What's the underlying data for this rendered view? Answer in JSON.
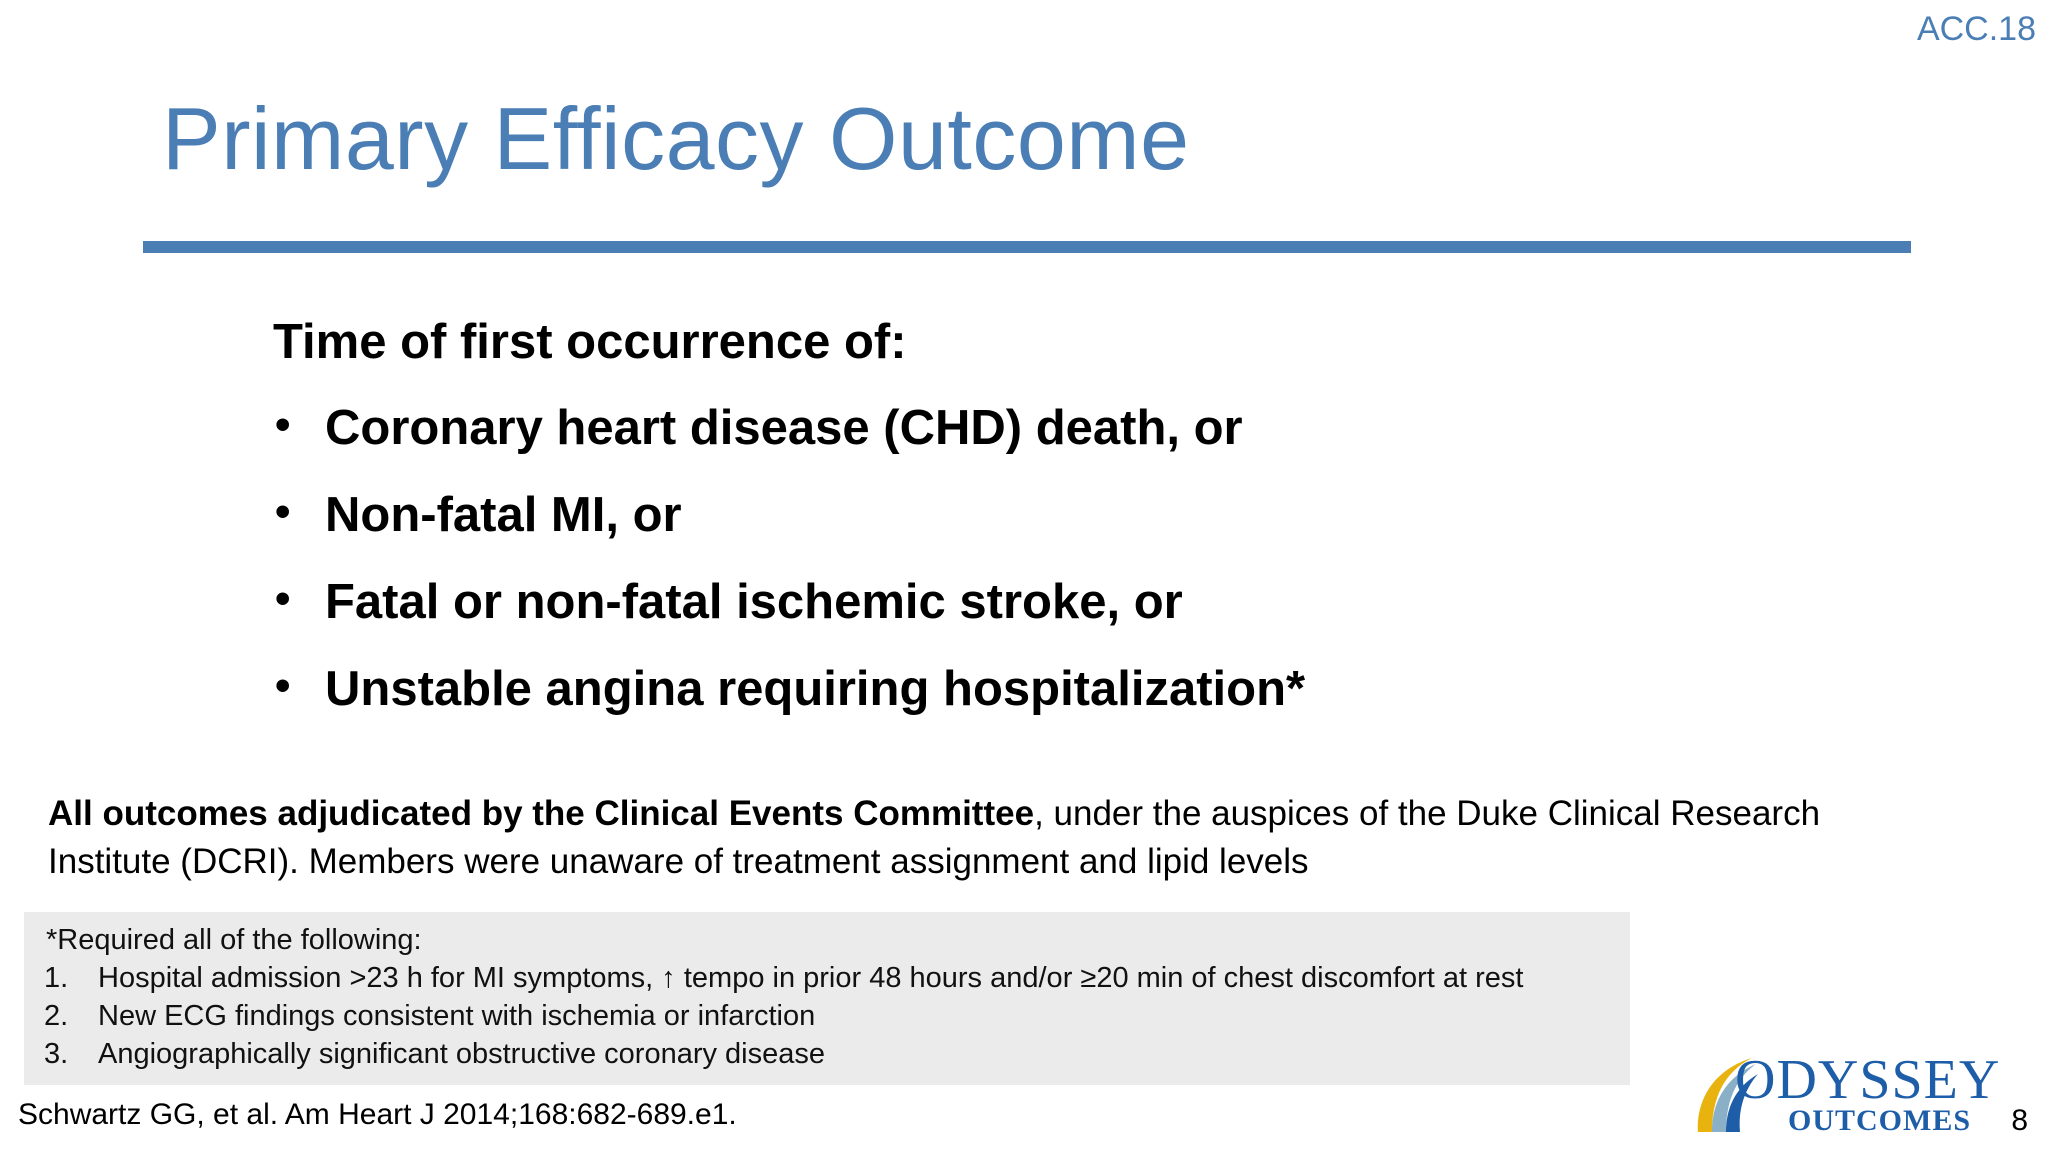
{
  "header": {
    "conference_tag": "ACC.18",
    "title": "Primary Efficacy Outcome"
  },
  "colors": {
    "accent": "#4a7eb5",
    "footnote_bg": "#ebebeb",
    "logo_blue": "#1e5ea8",
    "logo_gold": "#e8b30e"
  },
  "content": {
    "lead": "Time of first occurrence of:",
    "bullets": [
      "Coronary heart disease (CHD) death, or",
      "Non-fatal MI, or",
      "Fatal or non-fatal ischemic stroke, or",
      "Unstable angina requiring hospitalization*"
    ],
    "bullet_symbol": "•",
    "note_bold": "All outcomes adjudicated by the Clinical Events Committee",
    "note_rest": ", under the auspices of the Duke Clinical Research Institute (DCRI). Members were unaware of treatment assignment and lipid levels"
  },
  "footnote": {
    "heading": "*Required all of the following:",
    "items": [
      {
        "num": "1.",
        "text": "Hospital admission >23 h for MI symptoms, ↑ tempo in prior 48 hours and/or ≥20 min of chest discomfort at rest"
      },
      {
        "num": "2.",
        "text": "New ECG findings consistent with ischemia or infarction"
      },
      {
        "num": "3.",
        "text": "Angiographically significant obstructive coronary disease"
      }
    ]
  },
  "footer": {
    "citation": "Schwartz GG, et al. Am Heart J 2014;168:682-689.e1.",
    "logo_line1": "ODYSSEY",
    "logo_line2": "OUTCOMES",
    "logo_icon": "swoosh-logo-icon",
    "page_number": "8"
  }
}
